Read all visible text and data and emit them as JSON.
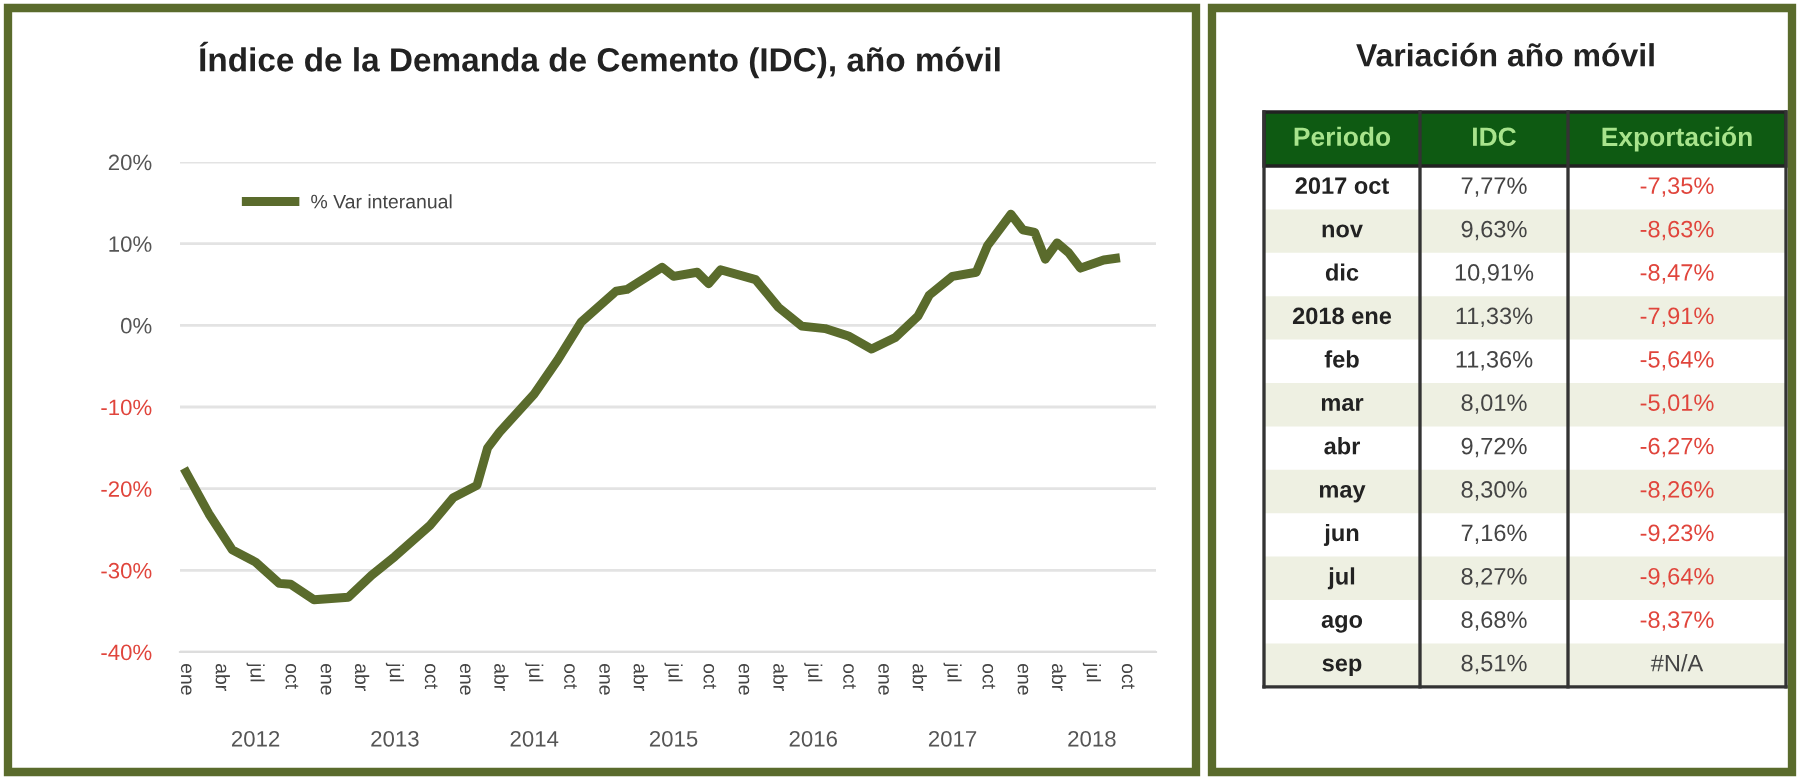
{
  "chart_data": [
    {
      "type": "line",
      "title": "Índice de la Demanda de Cemento (IDC), año móvil",
      "x": [
        "2012-01",
        "2012-03",
        "2012-05",
        "2012-07",
        "2012-09",
        "2012-10",
        "2012-12",
        "2013-03",
        "2013-05",
        "2013-07",
        "2013-10",
        "2013-12",
        "2014-02",
        "2014-03",
        "2014-04",
        "2014-07",
        "2014-09",
        "2014-11",
        "2015-02",
        "2015-03",
        "2015-06",
        "2015-07",
        "2015-09",
        "2015-10",
        "2015-11",
        "2016-02",
        "2016-04",
        "2016-06",
        "2016-08",
        "2016-10",
        "2016-12",
        "2017-02",
        "2017-04",
        "2017-05",
        "2017-07",
        "2017-09",
        "2017-10",
        "2017-12",
        "2018-01",
        "2018-02",
        "2018-03",
        "2018-04",
        "2018-05",
        "2018-06",
        "2018-08",
        "2018-09"
      ],
      "series": [
        {
          "name": "% Var interanual",
          "color": "#5a6b2c",
          "values": [
            -18,
            -23.1,
            -27.5,
            -29,
            -31.6,
            -31.7,
            -33.6,
            -33.3,
            -30.6,
            -28.3,
            -24.5,
            -21.1,
            -19.6,
            -15,
            -13.1,
            -8.4,
            -4.2,
            0.4,
            4.2,
            4.4,
            7.1,
            6.0,
            6.5,
            5.1,
            6.8,
            5.6,
            2.2,
            -0.1,
            -0.4,
            -1.3,
            -2.9,
            -1.5,
            1.1,
            3.7,
            6.0,
            6.5,
            9.8,
            13.6,
            11.7,
            11.4,
            8.1,
            10.1,
            8.9,
            7.0,
            8.0,
            8.2
          ]
        }
      ],
      "ylim": [
        -40,
        20
      ],
      "yticks": [
        {
          "value": -40,
          "label": "-40%"
        },
        {
          "value": -30,
          "label": "-30%"
        },
        {
          "value": -20,
          "label": "-20%"
        },
        {
          "value": -10,
          "label": "-10%"
        },
        {
          "value": 0,
          "label": "0%"
        },
        {
          "value": 10,
          "label": "10%"
        },
        {
          "value": 20,
          "label": "20%"
        }
      ],
      "xlim": [
        "2011-12-16",
        "2018-12-16"
      ],
      "xticks": [
        {
          "value": "2012-01-01",
          "label": "ene"
        },
        {
          "value": "2012-04-01",
          "label": "abr"
        },
        {
          "value": "2012-07-01",
          "label": "jul"
        },
        {
          "value": "2012-10-01",
          "label": "oct"
        },
        {
          "value": "2013-01-01",
          "label": "ene"
        },
        {
          "value": "2013-04-01",
          "label": "abr"
        },
        {
          "value": "2013-07-01",
          "label": "jul"
        },
        {
          "value": "2013-10-01",
          "label": "oct"
        },
        {
          "value": "2014-01-01",
          "label": "ene"
        },
        {
          "value": "2014-04-01",
          "label": "abr"
        },
        {
          "value": "2014-07-01",
          "label": "jul"
        },
        {
          "value": "2014-10-01",
          "label": "oct"
        },
        {
          "value": "2015-01-01",
          "label": "ene"
        },
        {
          "value": "2015-04-01",
          "label": "abr"
        },
        {
          "value": "2015-07-01",
          "label": "jul"
        },
        {
          "value": "2015-10-01",
          "label": "oct"
        },
        {
          "value": "2016-01-01",
          "label": "ene"
        },
        {
          "value": "2016-04-01",
          "label": "abr"
        },
        {
          "value": "2016-07-01",
          "label": "jul"
        },
        {
          "value": "2016-10-01",
          "label": "oct"
        },
        {
          "value": "2017-01-01",
          "label": "ene"
        },
        {
          "value": "2017-04-01",
          "label": "abr"
        },
        {
          "value": "2017-07-01",
          "label": "jul"
        },
        {
          "value": "2017-10-01",
          "label": "oct"
        },
        {
          "value": "2018-01-01",
          "label": "ene"
        },
        {
          "value": "2018-04-01",
          "label": "abr"
        },
        {
          "value": "2018-07-01",
          "label": "jul"
        },
        {
          "value": "2018-10-01",
          "label": "oct"
        }
      ],
      "x2lim": [
        "2011-12-16",
        "2018-12-16"
      ],
      "x2ticks": [
        {
          "value": "2012-07-01",
          "label": "2012"
        },
        {
          "value": "2013-07-01",
          "label": "2013"
        },
        {
          "value": "2014-07-01",
          "label": "2014"
        },
        {
          "value": "2015-07-01",
          "label": "2015"
        },
        {
          "value": "2016-07-01",
          "label": "2016"
        },
        {
          "value": "2017-07-01",
          "label": "2017"
        },
        {
          "value": "2018-07-01",
          "label": "2018"
        }
      ],
      "grid": "y",
      "legend": "top left",
      "marker": "none",
      "line_style": "solid"
    },
    {
      "type": "other",
      "title": "Variación año móvil",
      "xlabel": "Periodo",
      "categories": [
        "2017 oct",
        "nov",
        "dic",
        "2018 ene",
        "feb",
        "mar",
        "abr",
        "may",
        "jun",
        "jul",
        "ago",
        "sep"
      ],
      "series": [
        {
          "name": "IDC",
          "values": [
            7.77,
            9.63,
            10.91,
            11.33,
            11.36,
            8.01,
            9.72,
            8.3,
            7.16,
            8.27,
            8.68,
            8.51
          ],
          "value_labels": [
            "7,77%",
            "9,63%",
            "10,91%",
            "11,33%",
            "11,36%",
            "8,01%",
            "9,72%",
            "8,30%",
            "7,16%",
            "8,27%",
            "8,68%",
            "8,51%"
          ]
        },
        {
          "name": "Exportación",
          "values": [
            -7.35,
            -8.63,
            -8.47,
            -7.91,
            -5.64,
            -5.01,
            -6.27,
            -8.26,
            -9.23,
            -9.64,
            -8.37,
            null
          ],
          "value_labels": [
            "-7,35%",
            "-8,63%",
            "-8,47%",
            "-7,91%",
            "-5,64%",
            "-5,01%",
            "-6,27%",
            "-8,26%",
            "-9,23%",
            "-9,64%",
            "-8,37%",
            "#N/A"
          ]
        }
      ]
    }
  ]
}
